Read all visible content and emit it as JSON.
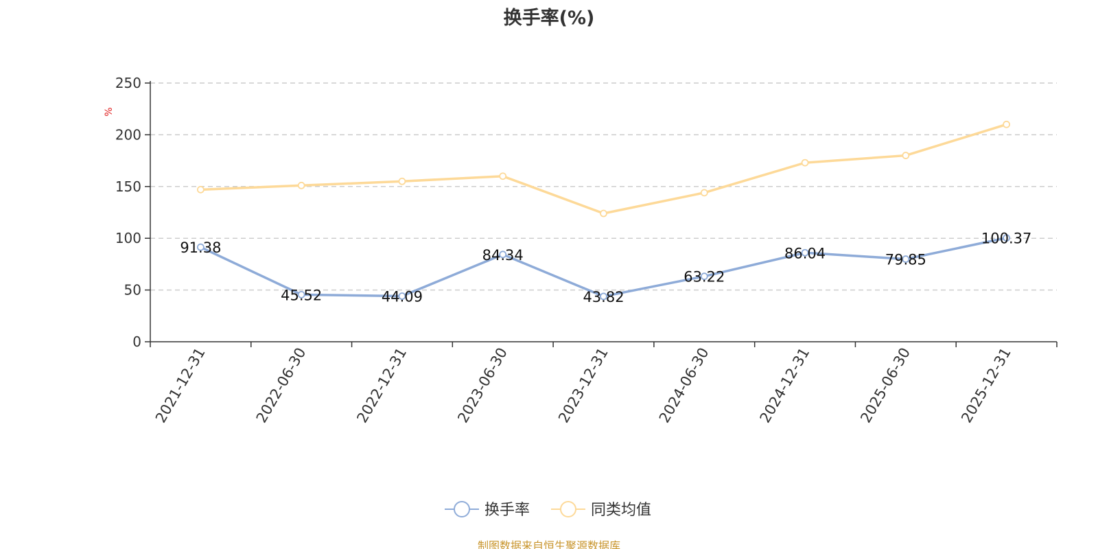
{
  "chart_data": {
    "type": "line",
    "title": "换手率(%)",
    "ylabel": "%",
    "ylim": [
      0,
      250
    ],
    "yticks": [
      0,
      50,
      100,
      150,
      200,
      250
    ],
    "categories": [
      "2021-12-31",
      "2022-06-30",
      "2022-12-31",
      "2023-06-30",
      "2023-12-31",
      "2024-06-30",
      "2024-12-31",
      "2025-06-30",
      "2025-12-31"
    ],
    "series": [
      {
        "name": "换手率",
        "values": [
          91.38,
          45.52,
          44.09,
          84.34,
          43.82,
          63.22,
          86.04,
          79.85,
          100.37
        ],
        "labels": [
          "91.38",
          "45.52",
          "44.09",
          "84.34",
          "43.82",
          "63.22",
          "86.04",
          "79.85",
          "100.37"
        ],
        "color": "#8eabd8",
        "show_labels": true
      },
      {
        "name": "同类均值",
        "values": [
          147,
          151,
          155,
          160,
          124,
          144,
          173,
          180,
          210
        ],
        "color": "#fdd998",
        "show_labels": false
      }
    ],
    "grid": true,
    "grid_style": "dashed",
    "legend_position": "bottom-center"
  },
  "colors": {
    "unit_label": "#e02020",
    "source_note": "#c9962f"
  },
  "footer": {
    "source_note": "制图数据来自恒生聚源数据库"
  }
}
